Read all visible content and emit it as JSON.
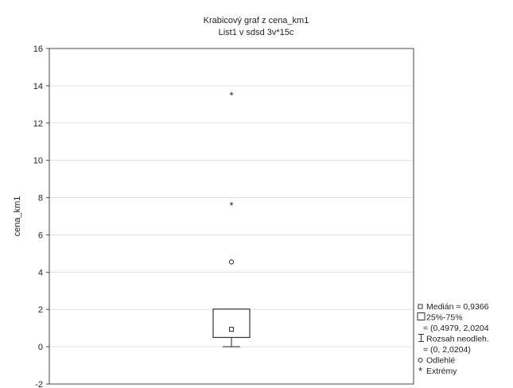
{
  "chart_data": {
    "type": "box",
    "title": "Krabicový graf z cena_km1",
    "subtitle": "List1 v sdsd 3v*15c",
    "xlabel": "",
    "ylabel": "cena_km1",
    "ylim": [
      -2,
      16
    ],
    "yticks": [
      -2,
      0,
      2,
      4,
      6,
      8,
      10,
      12,
      14,
      16
    ],
    "grid": true,
    "legend_position": "bottom-right",
    "box": {
      "median": 0.9366,
      "q1": 0.4979,
      "q3": 2.0204,
      "whisker_low": 0,
      "whisker_high": 2.0204,
      "outliers": [
        4.55
      ],
      "extremes": [
        7.6,
        13.5
      ]
    },
    "legend": [
      {
        "icon": "median-square-icon",
        "text": "Medián = 0,9366"
      },
      {
        "icon": "box-icon",
        "text": "25%-75%"
      },
      {
        "icon": "",
        "text": "= (0,4979, 2,0204"
      },
      {
        "icon": "whisker-icon",
        "text": "Rozsah neodleh."
      },
      {
        "icon": "",
        "text": "= (0, 2,0204)"
      },
      {
        "icon": "outlier-circle-icon",
        "text": "Odlehlé"
      },
      {
        "icon": "extreme-star-icon",
        "text": "Extrémy"
      }
    ]
  }
}
